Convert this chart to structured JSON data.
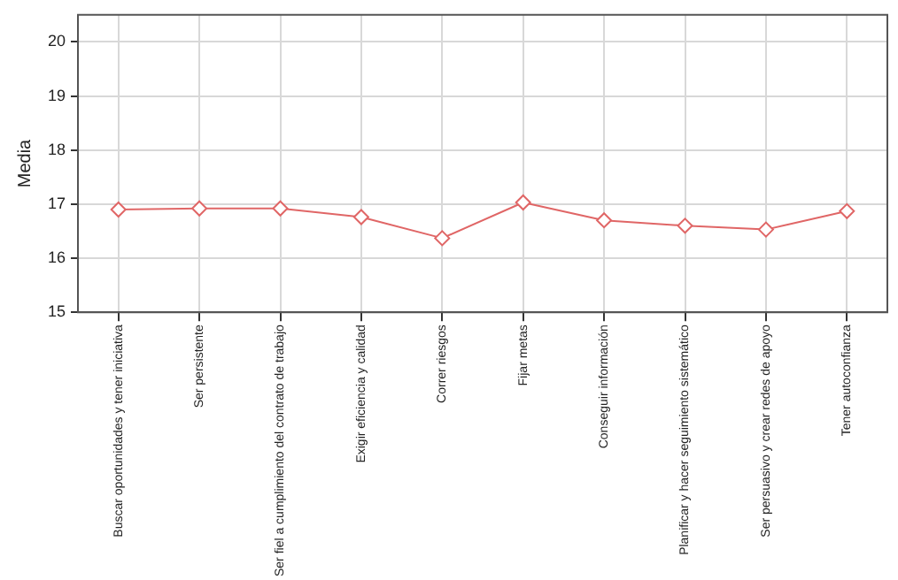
{
  "chart_data": {
    "type": "line",
    "ylabel": "Media",
    "categories": [
      "Buscar oportunidades y tener iniciativa",
      "Ser persistente",
      "Ser fiel a cumplimiento del contrato de trabajo",
      "Exigir eficiencia y calidad",
      "Correr riesgos",
      "Fijar metas",
      "Conseguir información",
      "Planificar y hacer seguimiento sistemático",
      "Ser persuasivo y crear redes de apoyo",
      "Tener autoconfianza"
    ],
    "series": [
      {
        "color": "#e06666",
        "values": [
          16.9,
          16.92,
          16.92,
          16.76,
          16.37,
          17.03,
          16.7,
          16.6,
          16.53,
          16.87
        ]
      }
    ],
    "ylim": [
      15,
      20.5
    ],
    "yticks": [
      15,
      16,
      17,
      18,
      19,
      20
    ],
    "grid": true,
    "legend": false,
    "marker": "diamond",
    "line_style": "solid"
  }
}
